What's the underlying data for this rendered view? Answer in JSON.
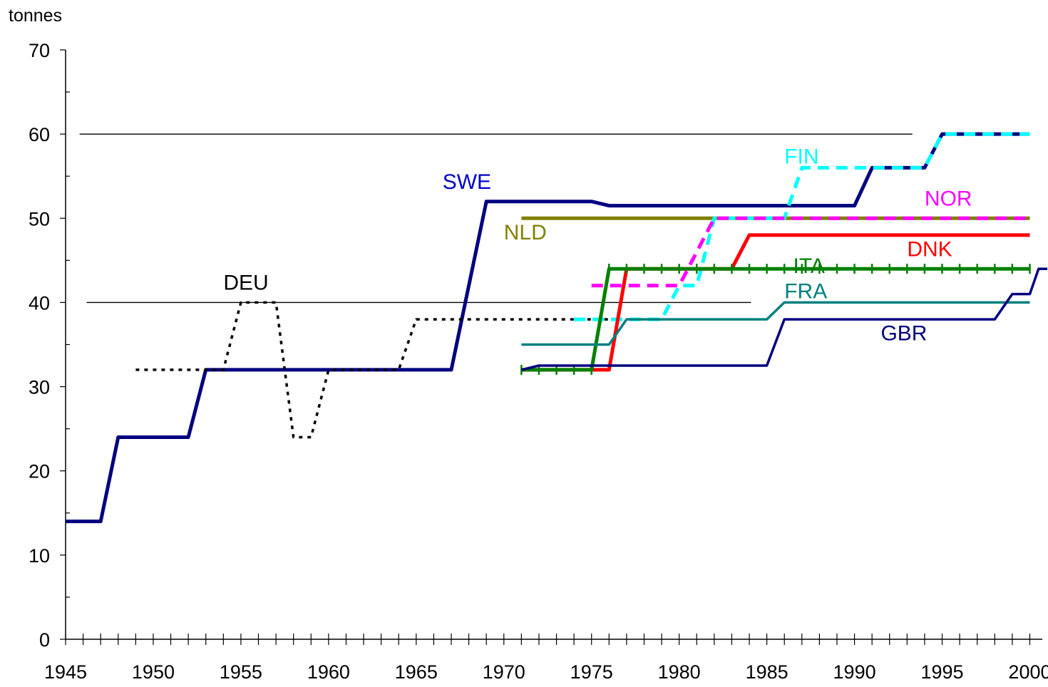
{
  "chart_data": {
    "type": "line",
    "title": "",
    "xlabel": "",
    "ylabel": "tonnes",
    "xlim": [
      1945,
      2000
    ],
    "ylim": [
      0,
      70
    ],
    "x_ticks": [
      1945,
      1950,
      1955,
      1960,
      1965,
      1970,
      1975,
      1980,
      1985,
      1990,
      1995,
      2000
    ],
    "y_ticks": [
      0,
      10,
      20,
      30,
      40,
      50,
      60,
      70
    ],
    "grid": false,
    "reference_lines": [
      {
        "y": 60,
        "x_from": 1945.8,
        "x_to": 1993.3
      },
      {
        "y": 40,
        "x_from": 1946.2,
        "x_to": 1984.1
      }
    ],
    "series": [
      {
        "name": "SWE",
        "color": "#000080",
        "style": "solid",
        "points": [
          [
            1945,
            14
          ],
          [
            1947,
            14
          ],
          [
            1948,
            24
          ],
          [
            1952,
            24
          ],
          [
            1953,
            32
          ],
          [
            1967,
            32
          ],
          [
            1969,
            52
          ],
          [
            1975,
            52
          ],
          [
            1976,
            51.5
          ],
          [
            1990,
            51.5
          ],
          [
            1991,
            56
          ],
          [
            1994,
            56
          ],
          [
            1995,
            60
          ],
          [
            2000,
            60
          ]
        ]
      },
      {
        "name": "DEU",
        "color": "#000000",
        "style": "dotted",
        "points": [
          [
            1949,
            32
          ],
          [
            1954,
            32
          ],
          [
            1955,
            40
          ],
          [
            1957,
            40
          ],
          [
            1958,
            24
          ],
          [
            1959,
            24
          ],
          [
            1960,
            32
          ],
          [
            1964,
            32
          ],
          [
            1965,
            38
          ],
          [
            1976,
            38
          ]
        ]
      },
      {
        "name": "NLD",
        "color": "#808000",
        "style": "solid",
        "points": [
          [
            1971,
            50
          ],
          [
            2000,
            50
          ]
        ]
      },
      {
        "name": "FIN",
        "color": "#00ffff",
        "style": "dashed",
        "points": [
          [
            1974,
            38
          ],
          [
            1979,
            38
          ],
          [
            1980,
            42
          ],
          [
            1981,
            42
          ],
          [
            1982,
            50
          ],
          [
            1986,
            50
          ],
          [
            1987,
            56
          ],
          [
            1990,
            56
          ],
          [
            1991,
            56
          ],
          [
            1994,
            56
          ],
          [
            1995,
            60
          ],
          [
            2000,
            60
          ]
        ]
      },
      {
        "name": "NOR",
        "color": "#ff00ff",
        "style": "dashed",
        "points": [
          [
            1975,
            42
          ],
          [
            1980,
            42
          ],
          [
            1982,
            50
          ],
          [
            2000,
            50
          ]
        ]
      },
      {
        "name": "DNK",
        "color": "#ff0000",
        "style": "solid",
        "points": [
          [
            1971,
            32
          ],
          [
            1976,
            32
          ],
          [
            1977,
            44
          ],
          [
            1983,
            44
          ],
          [
            1984,
            48
          ],
          [
            2000,
            48
          ]
        ]
      },
      {
        "name": "ITA",
        "color": "#008000",
        "style": "solid-markers",
        "points": [
          [
            1971,
            32
          ],
          [
            1975,
            32
          ],
          [
            1976,
            44
          ],
          [
            2000,
            44
          ]
        ]
      },
      {
        "name": "FRA",
        "color": "#008080",
        "style": "solid",
        "points": [
          [
            1971,
            35
          ],
          [
            1976,
            35
          ],
          [
            1977,
            38
          ],
          [
            1985,
            38
          ],
          [
            1986,
            40
          ],
          [
            2000,
            40
          ]
        ]
      },
      {
        "name": "GBR",
        "color": "#000080",
        "style": "solid",
        "points": [
          [
            1971,
            32
          ],
          [
            1972,
            32.5
          ],
          [
            1985,
            32.5
          ],
          [
            1986,
            38
          ],
          [
            1998,
            38
          ],
          [
            1999,
            41
          ],
          [
            2000,
            41
          ],
          [
            2000.5,
            44
          ],
          [
            2001,
            44
          ]
        ]
      }
    ],
    "annotations": [
      {
        "text": "SWE",
        "x": 1966.5,
        "y": 53.5,
        "color": "#0000cc"
      },
      {
        "text": "DEU",
        "x": 1954,
        "y": 41.5,
        "color": "#000000"
      },
      {
        "text": "NLD",
        "x": 1970,
        "y": 47.5,
        "color": "#808000"
      },
      {
        "text": "FIN",
        "x": 1986,
        "y": 56.5,
        "color": "#00ffff"
      },
      {
        "text": "NOR",
        "x": 1994,
        "y": 51.5,
        "color": "#ff00ff"
      },
      {
        "text": "DNK",
        "x": 1993,
        "y": 45.5,
        "color": "#ff0000"
      },
      {
        "text": "ITA",
        "x": 1986.5,
        "y": 43.5,
        "color": "#008000"
      },
      {
        "text": "FRA",
        "x": 1986,
        "y": 40.5,
        "color": "#008080"
      },
      {
        "text": "GBR",
        "x": 1991.5,
        "y": 35.5,
        "color": "#000080"
      }
    ]
  }
}
